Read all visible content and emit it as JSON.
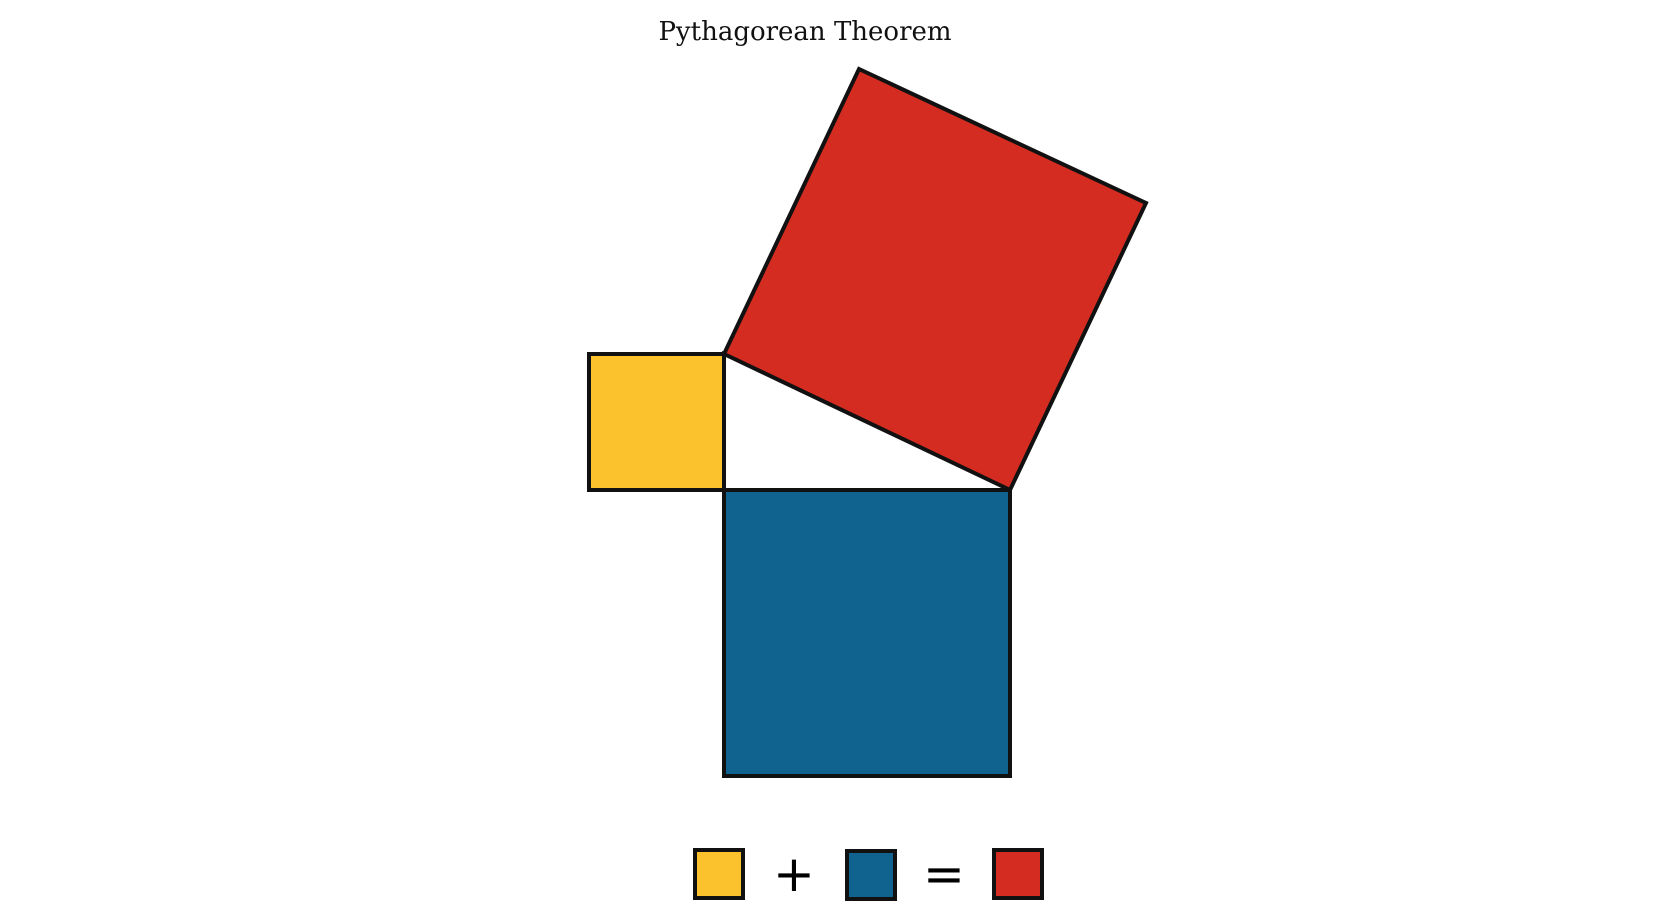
{
  "diagram": {
    "title": "Pythagorean Theorem",
    "colors": {
      "small_square": "#FBC22D",
      "medium_square": "#0F638E",
      "large_square": "#D42C20",
      "triangle": "#FFFFFF",
      "outline": "#111111"
    },
    "triangle": {
      "legs_ratio": [
        1,
        2.1
      ]
    }
  },
  "equation": {
    "plus": "+",
    "equals": "="
  }
}
